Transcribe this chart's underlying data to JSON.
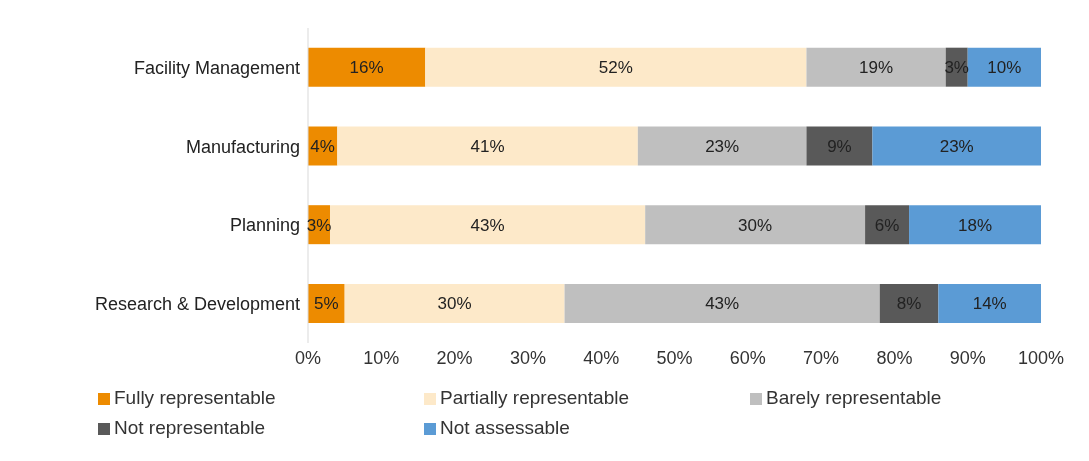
{
  "chart_data": {
    "type": "bar",
    "orientation": "horizontal",
    "stacked": true,
    "categories": [
      "Facility Management",
      "Manufacturing",
      "Planning",
      "Research & Development"
    ],
    "series": [
      {
        "name": "Fully representable",
        "color": "#ed8b00",
        "values": [
          16,
          4,
          3,
          5
        ],
        "value_labels": [
          "16%",
          "4%",
          "3%",
          "5%"
        ]
      },
      {
        "name": "Partially representable",
        "color": "#fde9c9",
        "values": [
          52,
          41,
          43,
          30
        ],
        "value_labels": [
          "52%",
          "41%",
          "43%",
          "30%"
        ]
      },
      {
        "name": "Barely representable",
        "color": "#bfbfbf",
        "values": [
          19,
          23,
          30,
          43
        ],
        "value_labels": [
          "19%",
          "23%",
          "30%",
          "43%"
        ]
      },
      {
        "name": "Not representable",
        "color": "#595959",
        "values": [
          3,
          9,
          6,
          8
        ],
        "value_labels": [
          "3%",
          "9%",
          "6%",
          "8%"
        ]
      },
      {
        "name": "Not assessable",
        "color": "#5b9bd5",
        "values": [
          10,
          23,
          18,
          14
        ],
        "value_labels": [
          "10%",
          "23%",
          "18%",
          "14%"
        ]
      }
    ],
    "xlim": [
      0,
      100
    ],
    "xticks": [
      {
        "value": 0,
        "label": "0%"
      },
      {
        "value": 10,
        "label": "10%"
      },
      {
        "value": 20,
        "label": "20%"
      },
      {
        "value": 30,
        "label": "30%"
      },
      {
        "value": 40,
        "label": "40%"
      },
      {
        "value": 50,
        "label": "50%"
      },
      {
        "value": 60,
        "label": "60%"
      },
      {
        "value": 70,
        "label": "70%"
      },
      {
        "value": 80,
        "label": "80%"
      },
      {
        "value": 90,
        "label": "90%"
      },
      {
        "value": 100,
        "label": "100%"
      }
    ],
    "grid": false,
    "legend": "bottom"
  }
}
